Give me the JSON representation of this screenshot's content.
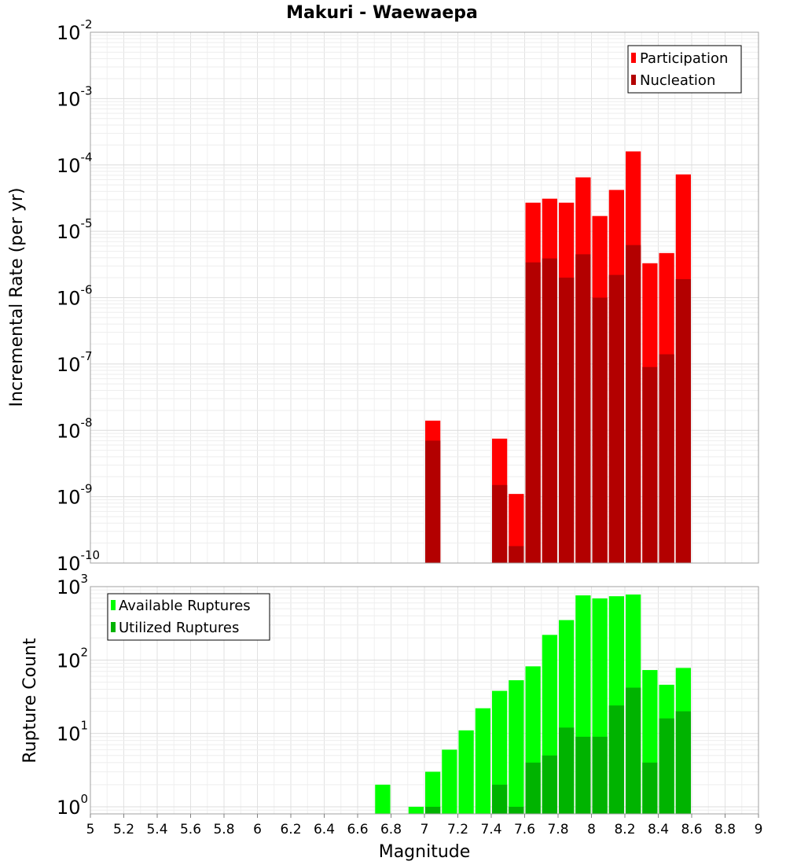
{
  "chart_data": [
    {
      "type": "bar",
      "title": "Makuri - Waewaepa",
      "ylabel": "Incremental Rate (per yr)",
      "yscale": "log",
      "ylim": [
        1e-10,
        0.01
      ],
      "y_ticks": [
        {
          "base": "10",
          "exp": "-10"
        },
        {
          "base": "10",
          "exp": "-9"
        },
        {
          "base": "10",
          "exp": "-8"
        },
        {
          "base": "10",
          "exp": "-7"
        },
        {
          "base": "10",
          "exp": "-6"
        },
        {
          "base": "10",
          "exp": "-5"
        },
        {
          "base": "10",
          "exp": "-4"
        },
        {
          "base": "10",
          "exp": "-3"
        },
        {
          "base": "10",
          "exp": "-2"
        }
      ],
      "legend_position": "top-right",
      "grid": true,
      "series": [
        {
          "name": "Participation",
          "color": "#ff0000",
          "x": [
            7.05,
            7.45,
            7.55,
            7.65,
            7.75,
            7.85,
            7.95,
            8.05,
            8.15,
            8.25,
            8.35,
            8.45,
            8.55
          ],
          "values": [
            1.4e-08,
            7.5e-09,
            1.1e-09,
            2.7e-05,
            3.1e-05,
            2.7e-05,
            6.5e-05,
            1.7e-05,
            4.2e-05,
            0.00016,
            3.3e-06,
            4.7e-06,
            7.2e-05
          ]
        },
        {
          "name": "Nucleation",
          "color": "#b30000",
          "x": [
            7.05,
            7.45,
            7.55,
            7.65,
            7.75,
            7.85,
            7.95,
            8.05,
            8.15,
            8.25,
            8.35,
            8.45,
            8.55
          ],
          "values": [
            7e-09,
            1.5e-09,
            1.8e-10,
            3.4e-06,
            3.9e-06,
            2e-06,
            4.5e-06,
            1e-06,
            2.2e-06,
            6.2e-06,
            9e-08,
            1.4e-07,
            1.9e-06
          ]
        }
      ]
    },
    {
      "type": "bar",
      "ylabel": "Rupture Count",
      "xlabel": "Magnitude",
      "yscale": "log",
      "ylim": [
        0.8,
        1000
      ],
      "y_ticks": [
        {
          "base": "10",
          "exp": "0",
          "value": 1
        },
        {
          "base": "10",
          "exp": "1",
          "value": 10
        },
        {
          "base": "10",
          "exp": "2",
          "value": 100
        },
        {
          "base": "10",
          "exp": "3",
          "value": 1000
        }
      ],
      "xlim": [
        5,
        9
      ],
      "x_ticks": [
        "5",
        "5.2",
        "5.4",
        "5.6",
        "5.8",
        "6",
        "6.2",
        "6.4",
        "6.6",
        "6.8",
        "7",
        "7.2",
        "7.4",
        "7.6",
        "7.8",
        "8",
        "8.2",
        "8.4",
        "8.6",
        "8.8",
        "9"
      ],
      "legend_position": "top-left",
      "grid": true,
      "series": [
        {
          "name": "Available Ruptures",
          "color": "#00ff00",
          "x": [
            6.75,
            6.95,
            7.05,
            7.15,
            7.25,
            7.35,
            7.45,
            7.55,
            7.65,
            7.75,
            7.85,
            7.95,
            8.05,
            8.15,
            8.25,
            8.35,
            8.45,
            8.55
          ],
          "values": [
            2,
            1,
            3,
            6,
            11,
            22,
            38,
            53,
            82,
            220,
            350,
            760,
            690,
            740,
            780,
            73,
            46,
            78
          ]
        },
        {
          "name": "Utilized Ruptures",
          "color": "#00b300",
          "x": [
            7.05,
            7.45,
            7.55,
            7.65,
            7.75,
            7.85,
            7.95,
            8.05,
            8.15,
            8.25,
            8.35,
            8.45,
            8.55
          ],
          "values": [
            1,
            2,
            1,
            4,
            5,
            12,
            9,
            9,
            24,
            42,
            4,
            16,
            20
          ]
        }
      ]
    }
  ]
}
